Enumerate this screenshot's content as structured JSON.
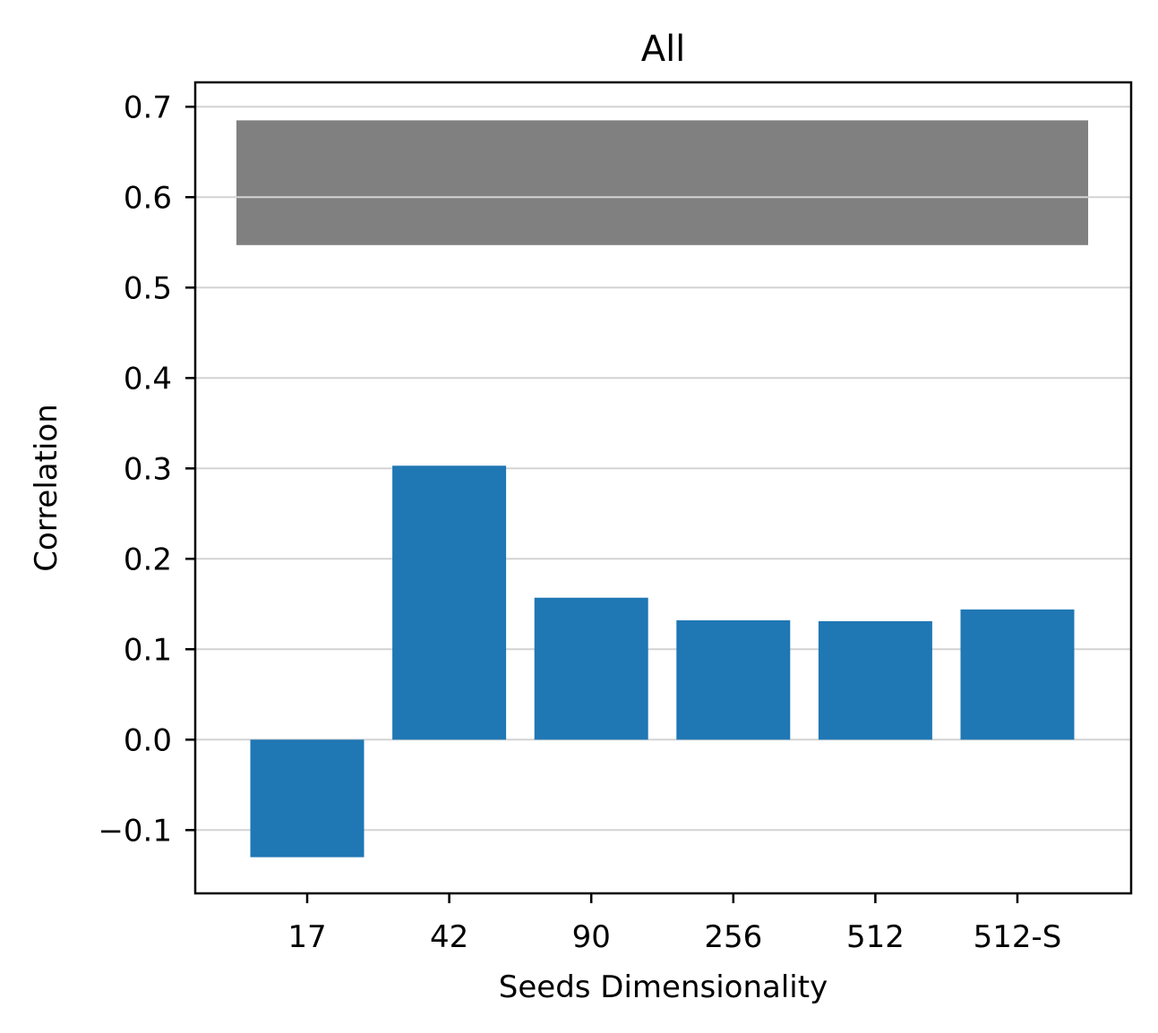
{
  "chart_data": {
    "type": "bar",
    "title": "All",
    "xlabel": "Seeds Dimensionality",
    "ylabel": "Correlation",
    "categories": [
      "17",
      "42",
      "90",
      "256",
      "512",
      "512-S"
    ],
    "values": [
      -0.13,
      0.303,
      0.157,
      0.132,
      0.131,
      0.144
    ],
    "ylim": [
      -0.17,
      0.727
    ],
    "yticks": [
      -0.1,
      0.0,
      0.1,
      0.2,
      0.3,
      0.4,
      0.5,
      0.6,
      0.7
    ],
    "ytick_labels": [
      "−0.1",
      "0.0",
      "0.1",
      "0.2",
      "0.3",
      "0.4",
      "0.5",
      "0.6",
      "0.7"
    ],
    "grid": "horizontal",
    "bar_color": "#1f77b4",
    "reference_band": {
      "low": 0.547,
      "high": 0.685,
      "color": "#808080"
    },
    "grid_color": "#d3d3d3"
  }
}
